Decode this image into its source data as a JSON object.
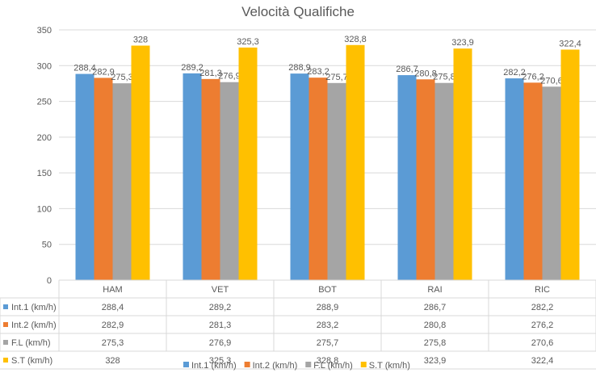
{
  "chart_data": {
    "type": "bar",
    "title": "Velocità Qualifiche",
    "categories": [
      "HAM",
      "VET",
      "BOT",
      "RAI",
      "RIC"
    ],
    "ylim": [
      0,
      350
    ],
    "yticks": [
      0,
      50,
      100,
      150,
      200,
      250,
      300,
      350
    ],
    "grid": true,
    "legend": "bottom",
    "data_table": true,
    "series": [
      {
        "name": "Int.1 (km/h)",
        "color": "#5B9BD5",
        "values": [
          288.4,
          289.2,
          288.9,
          286.7,
          282.2
        ],
        "labels": [
          "288,4",
          "289,2",
          "288,9",
          "286,7",
          "282,2"
        ]
      },
      {
        "name": "Int.2 (km/h)",
        "color": "#ED7D31",
        "values": [
          282.9,
          281.3,
          283.2,
          280.8,
          276.2
        ],
        "labels": [
          "282,9",
          "281,3",
          "283,2",
          "280,8",
          "276,2"
        ]
      },
      {
        "name": "F.L (km/h)",
        "color": "#A5A5A5",
        "values": [
          275.3,
          276.9,
          275.7,
          275.8,
          270.6
        ],
        "labels": [
          "275,3",
          "276,9",
          "275,7",
          "275,8",
          "270,6"
        ]
      },
      {
        "name": "S.T (km/h)",
        "color": "#FFC000",
        "values": [
          328,
          325.3,
          328.8,
          323.9,
          322.4
        ],
        "labels": [
          "328",
          "325,3",
          "328,8",
          "323,9",
          "322,4"
        ]
      }
    ]
  }
}
